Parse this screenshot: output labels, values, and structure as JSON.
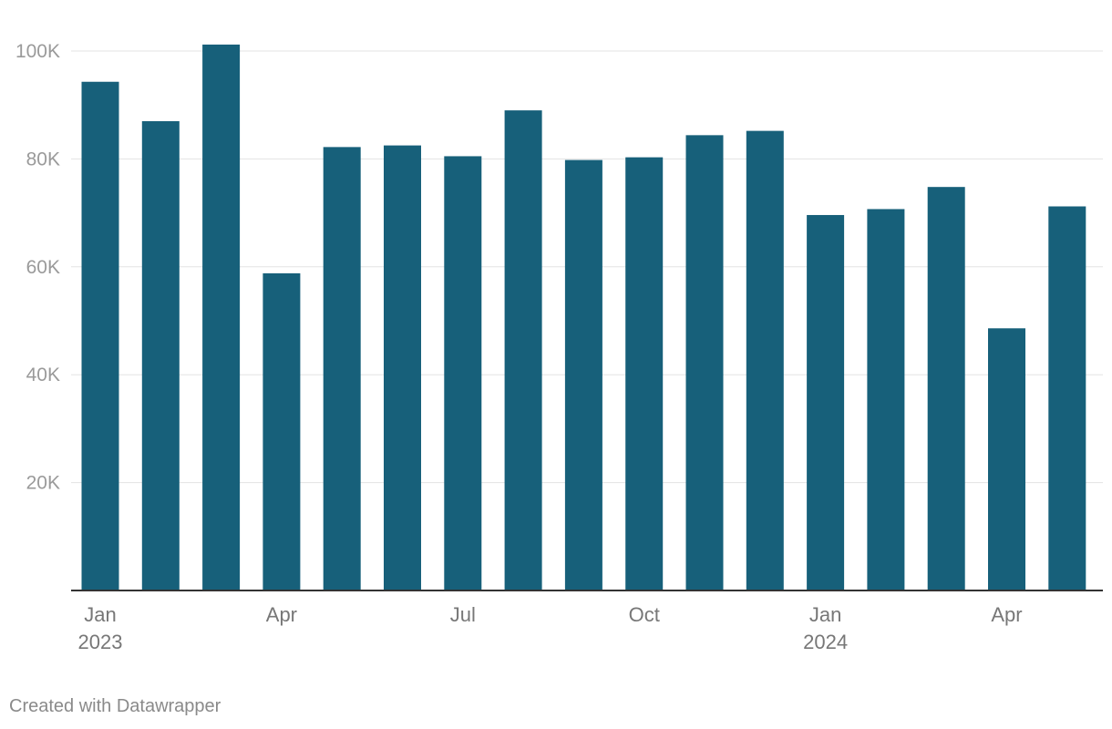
{
  "chart_data": {
    "type": "bar",
    "title": "",
    "xlabel": "",
    "ylabel": "",
    "categories": [
      "Jan 2023",
      "Feb 2023",
      "Mar 2023",
      "Apr 2023",
      "May 2023",
      "Jun 2023",
      "Jul 2023",
      "Aug 2023",
      "Sep 2023",
      "Oct 2023",
      "Nov 2023",
      "Dec 2023",
      "Jan 2024",
      "Feb 2024",
      "Mar 2024",
      "Apr 2024",
      "May 2024"
    ],
    "values": [
      94300,
      87000,
      101200,
      58800,
      82200,
      82500,
      80500,
      89000,
      79800,
      80300,
      84400,
      85200,
      69600,
      70700,
      74800,
      48600,
      71200
    ],
    "ylim": [
      0,
      100000
    ],
    "y_ticks": [
      {
        "value": 20000,
        "label": "20K"
      },
      {
        "value": 40000,
        "label": "40K"
      },
      {
        "value": 60000,
        "label": "60K"
      },
      {
        "value": 80000,
        "label": "80K"
      },
      {
        "value": 100000,
        "label": "100K"
      }
    ],
    "x_tick_labels": [
      {
        "index": 0,
        "label": "Jan",
        "sublabel": "2023"
      },
      {
        "index": 3,
        "label": "Apr",
        "sublabel": ""
      },
      {
        "index": 6,
        "label": "Jul",
        "sublabel": ""
      },
      {
        "index": 9,
        "label": "Oct",
        "sublabel": ""
      },
      {
        "index": 12,
        "label": "Jan",
        "sublabel": "2024"
      },
      {
        "index": 15,
        "label": "Apr",
        "sublabel": ""
      }
    ],
    "grid": true,
    "bar_color": "#17607a",
    "grid_color": "#e3e3e3",
    "axis_color": "#333333"
  },
  "footer": {
    "credit": "Created with Datawrapper"
  }
}
